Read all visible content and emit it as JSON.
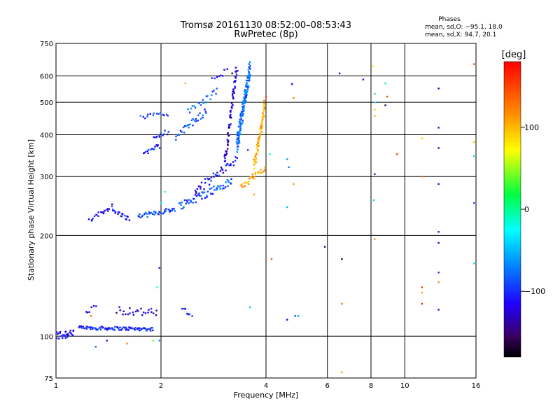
{
  "header": {
    "title": "Tromsø 20161130 08:52:00–08:53:43",
    "subtitle": "RwPretec (8p)",
    "stats_title": "Phases",
    "stats_o": "mean, sd,O: −95.1, 18.0",
    "stats_x": "mean, sd,X:  94.7, 20.1"
  },
  "chart_data": {
    "type": "scatter",
    "xlabel": "Frequency [MHz]",
    "ylabel": "Stationary phase Virtual Height [km]",
    "x_scale": "log",
    "y_scale": "log",
    "xlim": [
      1,
      16
    ],
    "ylim": [
      75,
      750
    ],
    "x_ticks": [
      1,
      2,
      4,
      6,
      8,
      10,
      16
    ],
    "x_tick_labels": [
      "1",
      "2",
      "4",
      "6",
      "8",
      "10",
      "16"
    ],
    "y_ticks": [
      75,
      100,
      200,
      300,
      400,
      500,
      600,
      750
    ],
    "y_tick_labels": [
      "75",
      "100",
      "200",
      "300",
      "400",
      "500",
      "600",
      "750"
    ],
    "grid": true,
    "colorbar": {
      "label": "[deg]",
      "range": [
        -180,
        180
      ],
      "ticks": [
        100,
        0,
        -100
      ],
      "tick_labels": [
        "100",
        "0",
        "−100"
      ]
    },
    "traces": [
      {
        "f0": 1.0,
        "f1": 1.12,
        "h0": 100,
        "h1": 103,
        "phase": -110,
        "n": 30,
        "jitter": 0.035
      },
      {
        "f0": 1.16,
        "f1": 1.9,
        "h0": 106,
        "h1": 105,
        "phase": -105,
        "n": 90,
        "jitter": 0.012
      },
      {
        "f0": 1.22,
        "f1": 1.3,
        "h0": 118,
        "h1": 122,
        "phase": -115,
        "n": 6,
        "jitter": 0.02
      },
      {
        "f0": 1.5,
        "f1": 1.95,
        "h0": 120,
        "h1": 117,
        "phase": -125,
        "n": 25,
        "jitter": 0.03
      },
      {
        "f0": 1.25,
        "f1": 1.45,
        "h0": 222,
        "h1": 245,
        "phase": -110,
        "n": 20,
        "jitter": 0.015
      },
      {
        "f0": 1.45,
        "f1": 1.62,
        "h0": 238,
        "h1": 224,
        "phase": -105,
        "n": 18,
        "jitter": 0.015
      },
      {
        "f0": 1.72,
        "f1": 2.2,
        "h0": 228,
        "h1": 240,
        "phase": -95,
        "n": 40,
        "jitter": 0.015
      },
      {
        "f0": 2.25,
        "f1": 3.2,
        "h0": 245,
        "h1": 290,
        "phase": -85,
        "n": 60,
        "jitter": 0.03
      },
      {
        "f0": 2.5,
        "f1": 3.3,
        "h0": 270,
        "h1": 340,
        "phase": -110,
        "n": 40,
        "jitter": 0.03
      },
      {
        "f0": 3.05,
        "f1": 3.3,
        "h0": 330,
        "h1": 640,
        "phase": -120,
        "n": 70,
        "jitter": 0.03
      },
      {
        "f0": 3.3,
        "f1": 3.6,
        "h0": 370,
        "h1": 630,
        "phase": -75,
        "n": 150,
        "jitter": 0.05
      },
      {
        "f0": 3.4,
        "f1": 3.98,
        "h0": 280,
        "h1": 320,
        "phase": 110,
        "n": 30,
        "jitter": 0.02
      },
      {
        "f0": 3.7,
        "f1": 3.98,
        "h0": 320,
        "h1": 500,
        "phase": 105,
        "n": 70,
        "jitter": 0.035
      },
      {
        "f0": 1.78,
        "f1": 1.98,
        "h0": 350,
        "h1": 372,
        "phase": -100,
        "n": 15,
        "jitter": 0.02
      },
      {
        "f0": 1.9,
        "f1": 2.1,
        "h0": 395,
        "h1": 410,
        "phase": -100,
        "n": 12,
        "jitter": 0.02
      },
      {
        "f0": 1.75,
        "f1": 2.1,
        "h0": 452,
        "h1": 462,
        "phase": -95,
        "n": 15,
        "jitter": 0.015
      },
      {
        "f0": 2.2,
        "f1": 2.7,
        "h0": 395,
        "h1": 470,
        "phase": -90,
        "n": 30,
        "jitter": 0.025
      },
      {
        "f0": 2.4,
        "f1": 2.9,
        "h0": 470,
        "h1": 540,
        "phase": -85,
        "n": 20,
        "jitter": 0.02
      },
      {
        "f0": 2.8,
        "f1": 3.1,
        "h0": 590,
        "h1": 620,
        "phase": -110,
        "n": 8,
        "jitter": 0.02
      },
      {
        "f0": 2.3,
        "f1": 2.45,
        "h0": 120,
        "h1": 117,
        "phase": -100,
        "n": 8,
        "jitter": 0.02
      }
    ],
    "points": [
      {
        "f": 1.9,
        "h": 97,
        "phase": 40
      },
      {
        "f": 1.98,
        "h": 97,
        "phase": -60
      },
      {
        "f": 1.6,
        "h": 95,
        "phase": 120
      },
      {
        "f": 1.3,
        "h": 93,
        "phase": -80
      },
      {
        "f": 1.4,
        "h": 97,
        "phase": -110
      },
      {
        "f": 1.26,
        "h": 115,
        "phase": 130
      },
      {
        "f": 1.98,
        "h": 160,
        "phase": -110
      },
      {
        "f": 1.95,
        "h": 140,
        "phase": -20
      },
      {
        "f": 2.0,
        "h": 250,
        "phase": -30
      },
      {
        "f": 2.05,
        "h": 270,
        "phase": -30
      },
      {
        "f": 2.35,
        "h": 570,
        "phase": 100
      },
      {
        "f": 3.2,
        "h": 610,
        "phase": -160
      },
      {
        "f": 3.55,
        "h": 360,
        "phase": -100
      },
      {
        "f": 3.7,
        "h": 265,
        "phase": 110
      },
      {
        "f": 3.6,
        "h": 122,
        "phase": -50
      },
      {
        "f": 4.0,
        "h": 520,
        "phase": 150
      },
      {
        "f": 4.1,
        "h": 350,
        "phase": -20
      },
      {
        "f": 4.15,
        "h": 170,
        "phase": 140
      },
      {
        "f": 4.6,
        "h": 338,
        "phase": -60
      },
      {
        "f": 4.65,
        "h": 320,
        "phase": -70
      },
      {
        "f": 4.6,
        "h": 243,
        "phase": -50
      },
      {
        "f": 4.6,
        "h": 112,
        "phase": -120
      },
      {
        "f": 4.85,
        "h": 115,
        "phase": -90
      },
      {
        "f": 4.95,
        "h": 115,
        "phase": -60
      },
      {
        "f": 4.75,
        "h": 567,
        "phase": -120
      },
      {
        "f": 4.8,
        "h": 515,
        "phase": 120
      },
      {
        "f": 4.8,
        "h": 285,
        "phase": 110
      },
      {
        "f": 5.9,
        "h": 185,
        "phase": -150
      },
      {
        "f": 6.5,
        "h": 610,
        "phase": -130
      },
      {
        "f": 6.6,
        "h": 170,
        "phase": -160
      },
      {
        "f": 6.6,
        "h": 125,
        "phase": 130
      },
      {
        "f": 6.6,
        "h": 78,
        "phase": 110
      },
      {
        "f": 7.6,
        "h": 585,
        "phase": -110
      },
      {
        "f": 8.1,
        "h": 640,
        "phase": 80
      },
      {
        "f": 8.2,
        "h": 530,
        "phase": 10
      },
      {
        "f": 8.2,
        "h": 500,
        "phase": -30
      },
      {
        "f": 8.2,
        "h": 475,
        "phase": 90
      },
      {
        "f": 8.2,
        "h": 455,
        "phase": 100
      },
      {
        "f": 8.2,
        "h": 305,
        "phase": -110
      },
      {
        "f": 8.15,
        "h": 255,
        "phase": -40
      },
      {
        "f": 8.2,
        "h": 195,
        "phase": 110
      },
      {
        "f": 8.8,
        "h": 570,
        "phase": 0
      },
      {
        "f": 8.9,
        "h": 520,
        "phase": 150
      },
      {
        "f": 8.8,
        "h": 490,
        "phase": -160
      },
      {
        "f": 9.5,
        "h": 350,
        "phase": 150
      },
      {
        "f": 11.2,
        "h": 390,
        "phase": 90
      },
      {
        "f": 11.2,
        "h": 300,
        "phase": 130
      },
      {
        "f": 11.2,
        "h": 140,
        "phase": 150
      },
      {
        "f": 11.2,
        "h": 135,
        "phase": 110
      },
      {
        "f": 11.2,
        "h": 125,
        "phase": 160
      },
      {
        "f": 12.5,
        "h": 550,
        "phase": -120
      },
      {
        "f": 12.5,
        "h": 420,
        "phase": -120
      },
      {
        "f": 12.5,
        "h": 365,
        "phase": -130
      },
      {
        "f": 12.5,
        "h": 285,
        "phase": -110
      },
      {
        "f": 12.5,
        "h": 205,
        "phase": -110
      },
      {
        "f": 12.5,
        "h": 190,
        "phase": -120
      },
      {
        "f": 12.5,
        "h": 155,
        "phase": -100
      },
      {
        "f": 12.5,
        "h": 145,
        "phase": 120
      },
      {
        "f": 12.5,
        "h": 120,
        "phase": -120
      },
      {
        "f": 15.8,
        "h": 650,
        "phase": 150
      },
      {
        "f": 15.8,
        "h": 380,
        "phase": 100
      },
      {
        "f": 15.8,
        "h": 345,
        "phase": -40
      },
      {
        "f": 15.8,
        "h": 250,
        "phase": -90
      },
      {
        "f": 15.8,
        "h": 165,
        "phase": -40
      }
    ]
  }
}
